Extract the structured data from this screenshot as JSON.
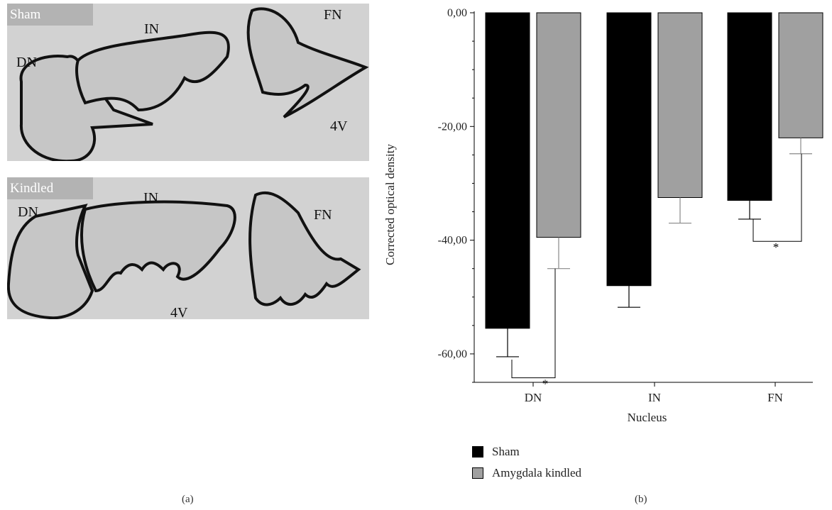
{
  "panel_a": {
    "sham": {
      "tag": "Sham",
      "labels": {
        "dn": "DN",
        "in": "IN",
        "fn": "FN",
        "v4": "4V"
      }
    },
    "kindled": {
      "tag": "Kindled",
      "labels": {
        "dn": "DN",
        "in": "IN",
        "fn": "FN",
        "v4": "4V"
      }
    }
  },
  "panel_labels": {
    "a": "(a)",
    "b": "(b)"
  },
  "chart_data": {
    "type": "bar",
    "categories": [
      "DN",
      "IN",
      "FN"
    ],
    "series": [
      {
        "name": "Sham",
        "values": [
          -55.5,
          -48.0,
          -33.0
        ],
        "errors": [
          5.0,
          3.8,
          3.3
        ],
        "color": "#000000"
      },
      {
        "name": "Amygdala kindled",
        "values": [
          -39.5,
          -32.5,
          -22.0
        ],
        "errors": [
          5.5,
          4.5,
          2.8
        ],
        "color": "#a0a0a0"
      }
    ],
    "xlabel": "Nucleus",
    "ylabel": "Corrected optical density",
    "ylim": [
      -65,
      0
    ],
    "yticks": [
      0,
      -20,
      -40,
      -60
    ],
    "ytick_labels": [
      "0,00",
      "-20,00",
      "-40,00",
      "-60,00"
    ],
    "significance": [
      {
        "category": "DN",
        "marker": "*"
      },
      {
        "category": "FN",
        "marker": "*"
      }
    ],
    "legend_position": "bottom-left"
  }
}
